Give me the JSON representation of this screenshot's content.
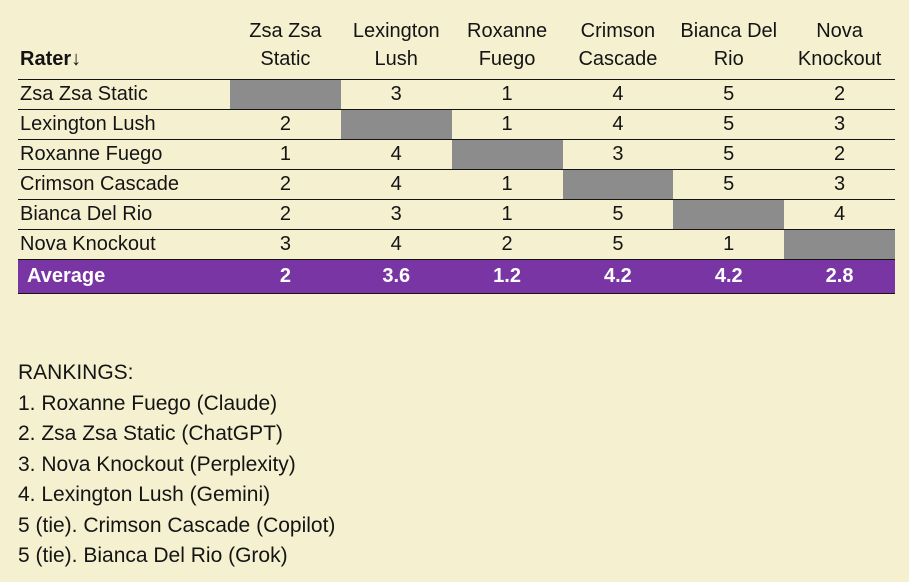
{
  "table": {
    "rater_header": "Rater↓",
    "columns": [
      "Zsa Zsa\nStatic",
      "Lexington\nLush",
      "Roxanne\nFuego",
      "Crimson\nCascade",
      "Bianca Del\nRio",
      "Nova\nKnockout"
    ],
    "rows": [
      {
        "rater": "Zsa Zsa Static",
        "values": [
          null,
          "3",
          "1",
          "4",
          "5",
          "2"
        ]
      },
      {
        "rater": "Lexington Lush",
        "values": [
          "2",
          null,
          "1",
          "4",
          "5",
          "3"
        ]
      },
      {
        "rater": "Roxanne Fuego",
        "values": [
          "1",
          "4",
          null,
          "3",
          "5",
          "2"
        ]
      },
      {
        "rater": "Crimson Cascade",
        "values": [
          "2",
          "4",
          "1",
          null,
          "5",
          "3"
        ]
      },
      {
        "rater": "Bianca Del Rio",
        "values": [
          "2",
          "3",
          "1",
          "5",
          null,
          "4"
        ]
      },
      {
        "rater": "Nova Knockout",
        "values": [
          "3",
          "4",
          "2",
          "5",
          "1",
          null
        ]
      }
    ],
    "average_row": {
      "label": "Average",
      "values": [
        "2",
        "3.6",
        "1.2",
        "4.2",
        "4.2",
        "2.8"
      ]
    }
  },
  "rankings": {
    "heading": "RANKINGS:",
    "items": [
      "1. Roxanne Fuego (Claude)",
      "2. Zsa Zsa Static (ChatGPT)",
      "3. Nova Knockout (Perplexity)",
      "4. Lexington Lush (Gemini)",
      "5 (tie). Crimson Cascade (Copilot)",
      "5 (tie). Bianca Del Rio (Grok)"
    ]
  },
  "colors": {
    "background": "#f5f1d0",
    "self_cell_gray": "#8c8c8c",
    "average_row_purple": "#7a35a4",
    "average_text": "#ffffff",
    "text": "#141414"
  }
}
